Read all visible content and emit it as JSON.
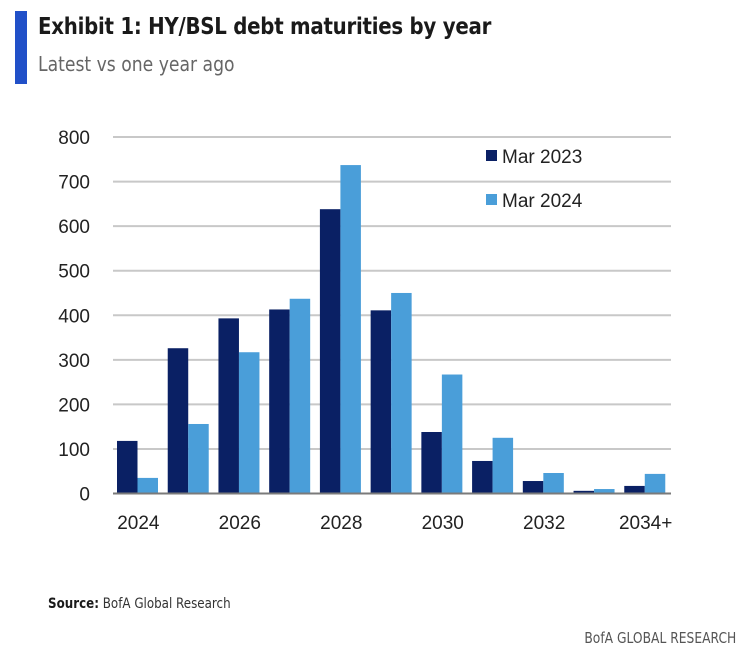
{
  "header": {
    "title": "Exhibit 1: HY/BSL debt maturities by year",
    "subtitle": "Latest vs one year ago",
    "accent_color": "#2150c8"
  },
  "footer": {
    "source_label": "Source:",
    "source_text": " BofA Global Research",
    "brand": "BofA GLOBAL RESEARCH"
  },
  "chart_data": {
    "type": "bar",
    "title": "Exhibit 1: HY/BSL debt maturities by year",
    "subtitle": "Latest vs one year ago",
    "xlabel": "",
    "ylabel": "",
    "ylim": [
      0,
      800
    ],
    "yticks": [
      0,
      100,
      200,
      300,
      400,
      500,
      600,
      700,
      800
    ],
    "grid": true,
    "legend_position": "top-right",
    "categories": [
      "2024",
      "2025",
      "2026",
      "2027",
      "2028",
      "2029",
      "2030",
      "2031",
      "2032",
      "2033",
      "2034+"
    ],
    "xtick_labels": [
      "2024",
      "",
      "2026",
      "",
      "2028",
      "",
      "2030",
      "",
      "2032",
      "",
      "2034+"
    ],
    "series": [
      {
        "name": "Mar 2023",
        "color": "#0a2064",
        "values": [
          118,
          326,
          393,
          413,
          638,
          411,
          138,
          73,
          28,
          6,
          17
        ]
      },
      {
        "name": "Mar 2024",
        "color": "#4a9ed9",
        "values": [
          35,
          156,
          317,
          437,
          737,
          450,
          267,
          125,
          46,
          10,
          44
        ]
      }
    ]
  }
}
